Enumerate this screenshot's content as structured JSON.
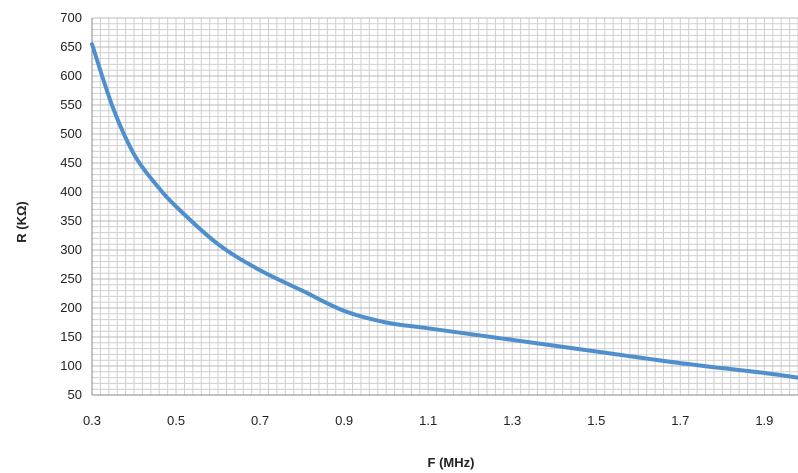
{
  "chart_data": {
    "type": "line",
    "title": "",
    "xlabel": "F (MHz)",
    "ylabel": "R (KΩ)",
    "xlim": [
      0.3,
      1.98
    ],
    "ylim": [
      50,
      700
    ],
    "xticks": [
      0.3,
      0.5,
      0.7,
      0.9,
      1.1,
      1.3,
      1.5,
      1.7,
      1.9
    ],
    "xtick_labels": [
      "0.3",
      "0.5",
      "0.7",
      "0.9",
      "1.1",
      "1.3",
      "1.5",
      "1.7",
      "1.9"
    ],
    "yticks": [
      50,
      100,
      150,
      200,
      250,
      300,
      350,
      400,
      450,
      500,
      550,
      600,
      650,
      700
    ],
    "ytick_labels": [
      "50",
      "100",
      "150",
      "200",
      "250",
      "300",
      "350",
      "400",
      "450",
      "500",
      "550",
      "600",
      "650",
      "700"
    ],
    "grid": true,
    "legend": "none",
    "series": [
      {
        "color": "#4f8fcb",
        "x": [
          0.3,
          0.35,
          0.4,
          0.45,
          0.5,
          0.6,
          0.7,
          0.8,
          0.9,
          1.0,
          1.1,
          1.3,
          1.5,
          1.7,
          1.9,
          1.98
        ],
        "y": [
          655,
          545,
          465,
          415,
          375,
          310,
          265,
          230,
          195,
          175,
          165,
          145,
          125,
          105,
          88,
          80
        ]
      }
    ]
  }
}
